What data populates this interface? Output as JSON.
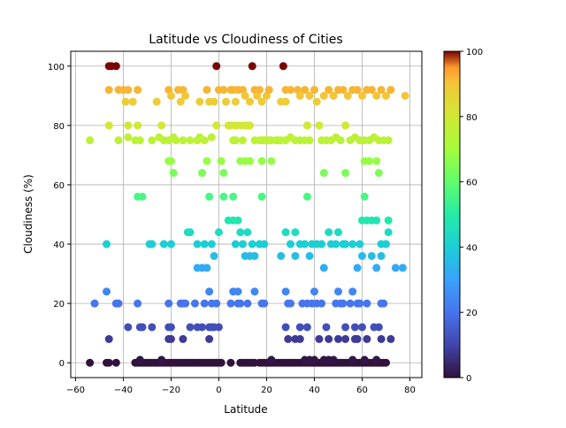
{
  "chart_data": {
    "type": "scatter",
    "title": "Latitude vs Cloudiness of Cities",
    "xlabel": "Latitude",
    "ylabel": "Cloudiness (%)",
    "xlim": [
      -62,
      85
    ],
    "ylim": [
      -5,
      105
    ],
    "xticks": [
      -60,
      -40,
      -20,
      0,
      20,
      40,
      60,
      80
    ],
    "yticks": [
      0,
      20,
      40,
      60,
      80,
      100
    ],
    "grid": true,
    "colormap": "turbo",
    "colorbar": {
      "min": 0,
      "max": 100,
      "ticks": [
        0,
        20,
        40,
        60,
        80,
        100
      ]
    },
    "points": [
      [
        -54,
        75
      ],
      [
        -46,
        100
      ],
      [
        -45,
        100
      ],
      [
        -43,
        100
      ],
      [
        -46,
        92
      ],
      [
        -42,
        92
      ],
      [
        -40,
        92
      ],
      [
        -38,
        92
      ],
      [
        -34,
        92
      ],
      [
        -46,
        80
      ],
      [
        -38,
        80
      ],
      [
        -34,
        80
      ],
      [
        -42,
        75
      ],
      [
        -38,
        76
      ],
      [
        -35,
        75
      ],
      [
        -33,
        75
      ],
      [
        -28,
        75
      ],
      [
        -25,
        76
      ],
      [
        -23,
        75
      ],
      [
        -39,
        88
      ],
      [
        -36,
        88
      ],
      [
        -26,
        88
      ],
      [
        -24,
        80
      ],
      [
        -21,
        92
      ],
      [
        -20,
        90
      ],
      [
        -17,
        92
      ],
      [
        -15,
        92
      ],
      [
        -14,
        90
      ],
      [
        -16,
        88
      ],
      [
        -12,
        75
      ],
      [
        -15,
        75
      ],
      [
        -21,
        75
      ],
      [
        -19,
        76
      ],
      [
        -18,
        75
      ],
      [
        -9,
        75
      ],
      [
        -8,
        76
      ],
      [
        -6,
        75
      ],
      [
        -3,
        76
      ],
      [
        -1,
        80
      ],
      [
        -21,
        68
      ],
      [
        -20,
        68
      ],
      [
        -19,
        64
      ],
      [
        -5,
        68
      ],
      [
        -7,
        64
      ],
      [
        -4,
        56
      ],
      [
        1,
        68
      ],
      [
        2,
        64
      ],
      [
        -34,
        56
      ],
      [
        -32,
        56
      ],
      [
        -8,
        88
      ],
      [
        -5,
        92
      ],
      [
        -4,
        88
      ],
      [
        -2,
        88
      ],
      [
        -1,
        100
      ],
      [
        0,
        92
      ],
      [
        2,
        92
      ],
      [
        3,
        88
      ],
      [
        5,
        92
      ],
      [
        6,
        92
      ],
      [
        7,
        88
      ],
      [
        8,
        92
      ],
      [
        10,
        92
      ],
      [
        11,
        90
      ],
      [
        13,
        88
      ],
      [
        14,
        100
      ],
      [
        15,
        92
      ],
      [
        16,
        90
      ],
      [
        17,
        92
      ],
      [
        18,
        88
      ],
      [
        20,
        90
      ],
      [
        21,
        92
      ],
      [
        4,
        80
      ],
      [
        5,
        80
      ],
      [
        7,
        80
      ],
      [
        9,
        80
      ],
      [
        11,
        80
      ],
      [
        12,
        80
      ],
      [
        13,
        80
      ],
      [
        6,
        75
      ],
      [
        7,
        75
      ],
      [
        10,
        75
      ],
      [
        15,
        75
      ],
      [
        17,
        75
      ],
      [
        18,
        75
      ],
      [
        19,
        75
      ],
      [
        20,
        75
      ],
      [
        21,
        75
      ],
      [
        22,
        75
      ],
      [
        24,
        75
      ],
      [
        25,
        75
      ],
      [
        26,
        75
      ],
      [
        28,
        75
      ],
      [
        30,
        76
      ],
      [
        32,
        75
      ],
      [
        34,
        75
      ],
      [
        36,
        75
      ],
      [
        38,
        75
      ],
      [
        2,
        56
      ],
      [
        6,
        56
      ],
      [
        9,
        68
      ],
      [
        11,
        68
      ],
      [
        13,
        68
      ],
      [
        18,
        68
      ],
      [
        22,
        68
      ],
      [
        18,
        56
      ],
      [
        27,
        100
      ],
      [
        28,
        92
      ],
      [
        30,
        92
      ],
      [
        33,
        92
      ],
      [
        34,
        90
      ],
      [
        36,
        92
      ],
      [
        38,
        90
      ],
      [
        40,
        92
      ],
      [
        41,
        88
      ],
      [
        44,
        90
      ],
      [
        46,
        92
      ],
      [
        48,
        90
      ],
      [
        50,
        92
      ],
      [
        52,
        92
      ],
      [
        54,
        90
      ],
      [
        56,
        92
      ],
      [
        58,
        92
      ],
      [
        60,
        90
      ],
      [
        62,
        92
      ],
      [
        64,
        92
      ],
      [
        66,
        90
      ],
      [
        68,
        92
      ],
      [
        70,
        90
      ],
      [
        72,
        92
      ],
      [
        78,
        90
      ],
      [
        26,
        88
      ],
      [
        28,
        88
      ],
      [
        42,
        80
      ],
      [
        43,
        75
      ],
      [
        45,
        75
      ],
      [
        47,
        75
      ],
      [
        49,
        76
      ],
      [
        51,
        75
      ],
      [
        53,
        80
      ],
      [
        55,
        75
      ],
      [
        57,
        76
      ],
      [
        59,
        75
      ],
      [
        61,
        75
      ],
      [
        63,
        75
      ],
      [
        65,
        76
      ],
      [
        67,
        75
      ],
      [
        69,
        75
      ],
      [
        71,
        75
      ],
      [
        37,
        80
      ],
      [
        44,
        64
      ],
      [
        53,
        64
      ],
      [
        61,
        68
      ],
      [
        63,
        68
      ],
      [
        66,
        68
      ],
      [
        67,
        64
      ],
      [
        37,
        56
      ],
      [
        61,
        56
      ],
      [
        -47,
        40
      ],
      [
        -29,
        40
      ],
      [
        -28,
        40
      ],
      [
        -23,
        40
      ],
      [
        -20,
        40
      ],
      [
        -13,
        44
      ],
      [
        -12,
        44
      ],
      [
        -9,
        40
      ],
      [
        -6,
        40
      ],
      [
        -3,
        40
      ],
      [
        -2,
        36
      ],
      [
        0,
        44
      ],
      [
        4,
        48
      ],
      [
        6,
        48
      ],
      [
        8,
        48
      ],
      [
        7,
        40
      ],
      [
        9,
        44
      ],
      [
        10,
        40
      ],
      [
        12,
        44
      ],
      [
        14,
        40
      ],
      [
        17,
        40
      ],
      [
        19,
        40
      ],
      [
        11,
        36
      ],
      [
        13,
        36
      ],
      [
        15,
        36
      ],
      [
        26,
        36
      ],
      [
        28,
        44
      ],
      [
        30,
        40
      ],
      [
        32,
        36
      ],
      [
        32,
        44
      ],
      [
        34,
        40
      ],
      [
        36,
        40
      ],
      [
        38,
        36
      ],
      [
        39,
        40
      ],
      [
        41,
        40
      ],
      [
        43,
        40
      ],
      [
        44,
        32
      ],
      [
        46,
        44
      ],
      [
        47,
        40
      ],
      [
        49,
        40
      ],
      [
        50,
        44
      ],
      [
        52,
        40
      ],
      [
        53,
        40
      ],
      [
        56,
        40
      ],
      [
        59,
        40
      ],
      [
        60,
        48
      ],
      [
        62,
        48
      ],
      [
        64,
        48
      ],
      [
        66,
        48
      ],
      [
        60,
        36
      ],
      [
        64,
        36
      ],
      [
        68,
        40
      ],
      [
        70,
        40
      ],
      [
        71,
        44
      ],
      [
        71,
        48
      ],
      [
        58,
        32
      ],
      [
        66,
        32
      ],
      [
        68,
        36
      ],
      [
        74,
        32
      ],
      [
        77,
        32
      ],
      [
        -9,
        32
      ],
      [
        -7,
        32
      ],
      [
        -5,
        32
      ],
      [
        -4,
        24
      ],
      [
        -52,
        20
      ],
      [
        -47,
        24
      ],
      [
        -43,
        20
      ],
      [
        -42,
        20
      ],
      [
        -34,
        20
      ],
      [
        -38,
        12
      ],
      [
        -33,
        12
      ],
      [
        -32,
        12
      ],
      [
        -28,
        12
      ],
      [
        -21,
        12
      ],
      [
        -20,
        12
      ],
      [
        -16,
        20
      ],
      [
        -15,
        20
      ],
      [
        -14,
        20
      ],
      [
        -12,
        12
      ],
      [
        -10,
        20
      ],
      [
        -9,
        12
      ],
      [
        -7,
        12
      ],
      [
        -6,
        20
      ],
      [
        -4,
        12
      ],
      [
        -3,
        20
      ],
      [
        -2,
        12
      ],
      [
        -1,
        20
      ],
      [
        0,
        12
      ],
      [
        5,
        20
      ],
      [
        6,
        24
      ],
      [
        8,
        24
      ],
      [
        8,
        20
      ],
      [
        9,
        20
      ],
      [
        12,
        20
      ],
      [
        15,
        24
      ],
      [
        18,
        20
      ],
      [
        19,
        20
      ],
      [
        28,
        24
      ],
      [
        29,
        20
      ],
      [
        30,
        20
      ],
      [
        34,
        12
      ],
      [
        35,
        20
      ],
      [
        37,
        20
      ],
      [
        37,
        12
      ],
      [
        39,
        20
      ],
      [
        40,
        24
      ],
      [
        41,
        20
      ],
      [
        43,
        20
      ],
      [
        45,
        12
      ],
      [
        49,
        20
      ],
      [
        50,
        24
      ],
      [
        51,
        20
      ],
      [
        52,
        20
      ],
      [
        53,
        12
      ],
      [
        55,
        20
      ],
      [
        56,
        24
      ],
      [
        57,
        12
      ],
      [
        58,
        20
      ],
      [
        59,
        20
      ],
      [
        62,
        20
      ],
      [
        65,
        12
      ],
      [
        67,
        12
      ],
      [
        68,
        20
      ],
      [
        69,
        20
      ],
      [
        -21,
        20
      ],
      [
        -46,
        8
      ],
      [
        -21,
        8
      ],
      [
        -20,
        8
      ],
      [
        -15,
        8
      ],
      [
        -4,
        8
      ],
      [
        -3,
        12
      ],
      [
        29,
        8
      ],
      [
        32,
        8
      ],
      [
        34,
        8
      ],
      [
        42,
        8
      ],
      [
        46,
        8
      ],
      [
        50,
        8
      ],
      [
        53,
        8
      ],
      [
        57,
        8
      ],
      [
        58,
        8
      ],
      [
        60,
        12
      ],
      [
        62,
        8
      ],
      [
        68,
        8
      ],
      [
        72,
        8
      ],
      [
        28,
        12
      ]
    ],
    "zero_row": [
      -54,
      -47,
      -46,
      -43,
      -35,
      -34,
      -33,
      -32,
      -31,
      -30,
      -29,
      -28,
      -27,
      -26,
      -25,
      -24,
      -23,
      -22,
      -21,
      -20,
      -19,
      -18,
      -17,
      -16,
      -15,
      -14,
      -13,
      -12,
      -11,
      -10,
      -9,
      -8,
      -7,
      -6,
      -5,
      -4,
      -3,
      -2,
      -1,
      0,
      1,
      5,
      9,
      10,
      11,
      12,
      13,
      14,
      15,
      17,
      18,
      19,
      20,
      21,
      22,
      23,
      24,
      25,
      26,
      27,
      28,
      29,
      30,
      31,
      32,
      33,
      34,
      35,
      36,
      37,
      38,
      39,
      40,
      41,
      42,
      43,
      44,
      45,
      46,
      47,
      48,
      49,
      50,
      51,
      52,
      53,
      54,
      55,
      56,
      57,
      58,
      59,
      60,
      61,
      62,
      63,
      64,
      65,
      66,
      67,
      68,
      69,
      70
    ],
    "jitter_row": [
      [
        -33,
        1
      ],
      [
        -24,
        1
      ],
      [
        22,
        1
      ],
      [
        36,
        1
      ],
      [
        38,
        1
      ],
      [
        40,
        1
      ],
      [
        44,
        1
      ],
      [
        46,
        1
      ],
      [
        48,
        1
      ],
      [
        56,
        1
      ],
      [
        61,
        1
      ],
      [
        66,
        1
      ]
    ]
  }
}
